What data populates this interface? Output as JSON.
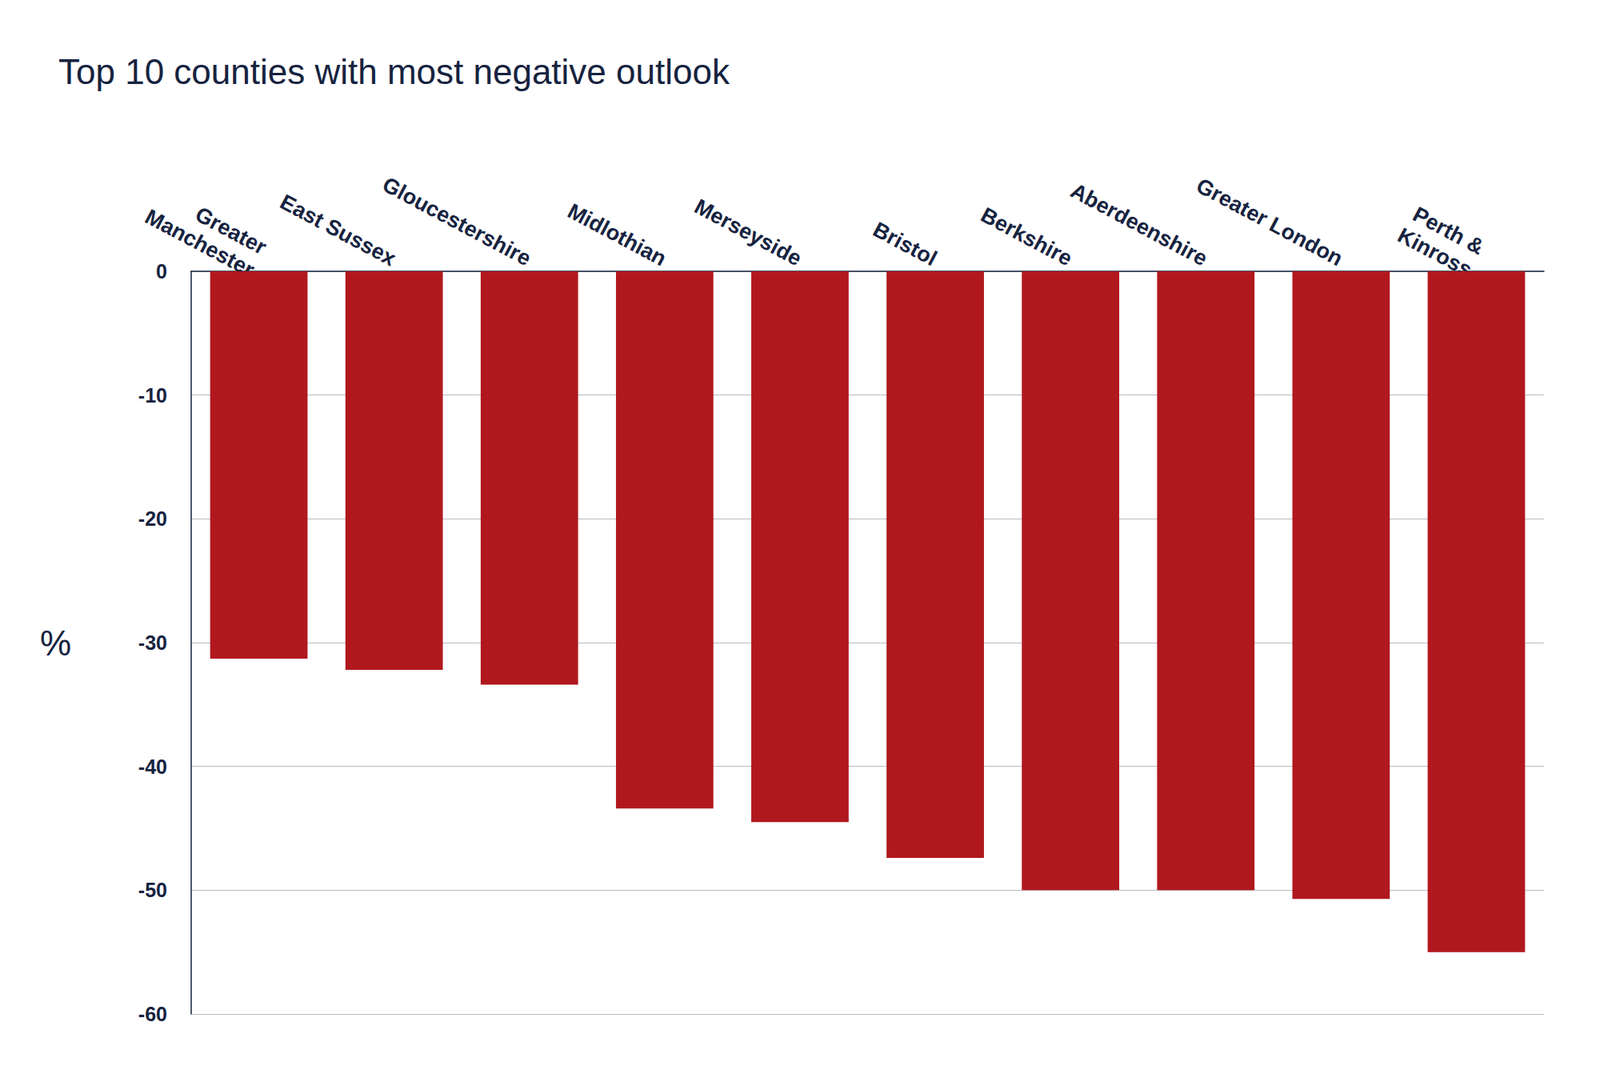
{
  "chart_data": {
    "type": "bar",
    "title": "Top 10 counties with most negative outlook",
    "y_label": "%",
    "categories": [
      "Greater Manchester",
      "East Sussex",
      "Gloucestershire",
      "Midlothian",
      "Merseyside",
      "Bristol",
      "Berkshire",
      "Aberdeenshire",
      "Greater London",
      "Perth & Kinross"
    ],
    "values": [
      -31.3,
      -32.2,
      -33.4,
      -43.4,
      -44.5,
      -47.4,
      -50,
      -50,
      -50.7,
      -55
    ],
    "color": "#b0181e",
    "ylim": [
      -60,
      0
    ],
    "yticks": [
      -60,
      -50,
      -40,
      -30,
      -20,
      -10,
      0
    ],
    "grid": true
  }
}
